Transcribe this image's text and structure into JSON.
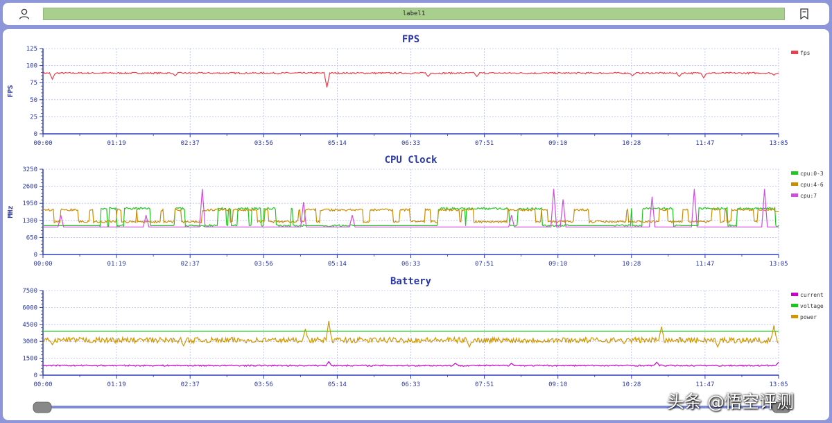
{
  "header": {
    "label": "label1",
    "left_icon": "user-icon",
    "right_icon": "bookmark-icon"
  },
  "colors": {
    "fps": "#e8404c",
    "cpu_0_3": "#1fc81f",
    "cpu_4_6": "#cc8c00",
    "cpu_7": "#d24be0",
    "current": "#c800c8",
    "voltage": "#18c818",
    "power": "#d29600",
    "axis": "#2b3bc0",
    "grid": "#b6bcef",
    "title": "#2a37a8",
    "slider": "#7b89e0"
  },
  "watermark": "头条 @悟空评测",
  "chart_data": [
    {
      "type": "line",
      "title": "FPS",
      "xlabel": "",
      "ylabel": "FPS",
      "x_ticks": [
        "00:00",
        "01:19",
        "02:37",
        "03:56",
        "05:14",
        "06:33",
        "07:51",
        "09:10",
        "10:28",
        "11:47",
        "13:05"
      ],
      "xlim": [
        0,
        785
      ],
      "ylim": [
        0,
        125
      ],
      "y_ticks": [
        0,
        25,
        50,
        75,
        100,
        125
      ],
      "grid": true,
      "legend": "top-right",
      "series": [
        {
          "name": "fps",
          "color_key": "fps",
          "base": 89,
          "noise": 1.2,
          "spikes": [
            [
              10,
              80
            ],
            [
              141,
              85
            ],
            [
              303,
              68
            ],
            [
              411,
              84
            ],
            [
              463,
              84
            ],
            [
              629,
              85
            ],
            [
              679,
              84
            ],
            [
              705,
              82
            ],
            [
              780,
              86
            ]
          ]
        }
      ]
    },
    {
      "type": "line",
      "title": "CPU Clock",
      "xlabel": "",
      "ylabel": "MHz",
      "x_ticks": [
        "00:00",
        "01:19",
        "02:37",
        "03:56",
        "05:14",
        "06:33",
        "07:51",
        "09:10",
        "10:28",
        "11:47",
        "13:05"
      ],
      "xlim": [
        0,
        785
      ],
      "ylim": [
        0,
        3250
      ],
      "y_ticks": [
        0,
        650,
        1300,
        1950,
        2600,
        3250
      ],
      "grid": true,
      "legend": "top-right",
      "series": [
        {
          "name": "cpu:0-3",
          "color_key": "cpu_0_3",
          "base": 1100,
          "noise": 0,
          "active": [
            [
              60,
              115
            ],
            [
              140,
              200
            ],
            [
              205,
              280
            ],
            [
              300,
              330
            ],
            [
              420,
              520
            ],
            [
              470,
              560
            ],
            [
              610,
              680
            ],
            [
              615,
              660
            ],
            [
              645,
              680
            ],
            [
              700,
              750
            ],
            [
              745,
              790
            ]
          ],
          "active_low": 1100,
          "active_high": 1750
        },
        {
          "name": "cpu:4-6",
          "color_key": "cpu_4_6",
          "base": 1650,
          "noise": 0,
          "active": [
            [
              0,
              40
            ],
            [
              40,
              780
            ]
          ],
          "active_low": 1250,
          "active_high": 1700
        },
        {
          "name": "cpu:7",
          "color_key": "cpu_7",
          "base": 1050,
          "noise": 0,
          "spikes": [
            [
              19,
              1500
            ],
            [
              110,
              1500
            ],
            [
              170,
              2500
            ],
            [
              278,
              2000
            ],
            [
              330,
              1500
            ],
            [
              500,
              1500
            ],
            [
              545,
              2500
            ],
            [
              555,
              2100
            ],
            [
              650,
              2200
            ],
            [
              695,
              2500
            ],
            [
              770,
              2500
            ]
          ]
        }
      ]
    },
    {
      "type": "line",
      "title": "Battery",
      "xlabel": "",
      "ylabel": "",
      "x_ticks": [
        "00:00",
        "01:19",
        "02:37",
        "03:56",
        "05:14",
        "06:33",
        "07:51",
        "09:10",
        "10:28",
        "11:47",
        "13:05"
      ],
      "xlim": [
        0,
        785
      ],
      "ylim": [
        0,
        7500
      ],
      "y_ticks": [
        0,
        1500,
        3000,
        4500,
        6000,
        7500
      ],
      "grid": true,
      "legend": "top-right",
      "series": [
        {
          "name": "current",
          "color_key": "current",
          "base": 850,
          "noise": 60,
          "spikes": [
            [
              305,
              1200
            ],
            [
              440,
              1050
            ],
            [
              500,
              1050
            ],
            [
              655,
              1150
            ],
            [
              785,
              1150
            ]
          ]
        },
        {
          "name": "voltage",
          "color_key": "voltage",
          "base": 3900,
          "noise": 0
        },
        {
          "name": "power",
          "color_key": "power",
          "base": 3100,
          "noise": 250,
          "spikes": [
            [
              10,
              2700
            ],
            [
              150,
              2600
            ],
            [
              280,
              4100
            ],
            [
              305,
              4800
            ],
            [
              455,
              2500
            ],
            [
              620,
              2800
            ],
            [
              660,
              4300
            ],
            [
              720,
              2500
            ],
            [
              780,
              4400
            ]
          ]
        }
      ]
    }
  ]
}
